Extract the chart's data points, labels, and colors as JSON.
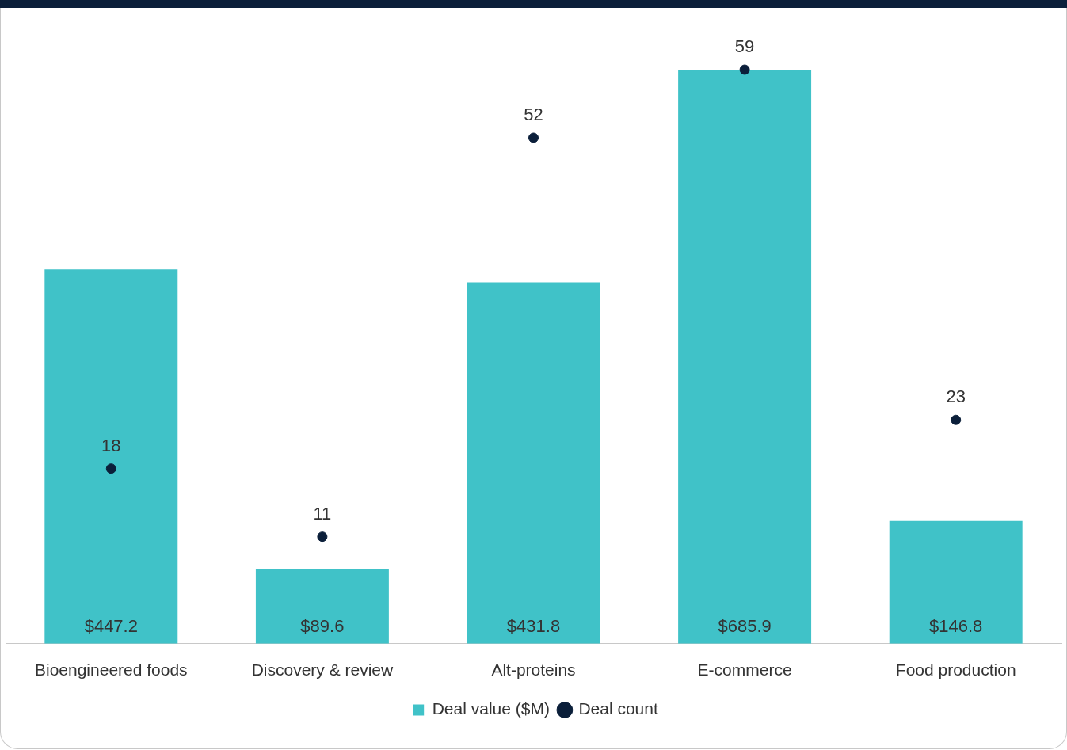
{
  "chart_data": {
    "type": "bar",
    "categories": [
      "Bioengineered foods",
      "Discovery & review",
      "Alt-proteins",
      "E-commerce",
      "Food production"
    ],
    "series": [
      {
        "name": "Deal value ($M)",
        "color": "#40c2c8",
        "values": [
          447.2,
          89.6,
          431.8,
          685.9,
          146.8
        ],
        "value_labels": [
          "$447.2",
          "$89.6",
          "$431.8",
          "$685.9",
          "$146.8"
        ]
      },
      {
        "name": "Deal count",
        "type": "scatter",
        "axis": "y2",
        "color": "#0b1f3a",
        "marker": "circle",
        "values": [
          18,
          11,
          52,
          59,
          23
        ],
        "value_labels": [
          "18",
          "11",
          "52",
          "59",
          "23"
        ]
      }
    ],
    "tick_labels": "x",
    "grid": false,
    "legend": "bottom"
  }
}
